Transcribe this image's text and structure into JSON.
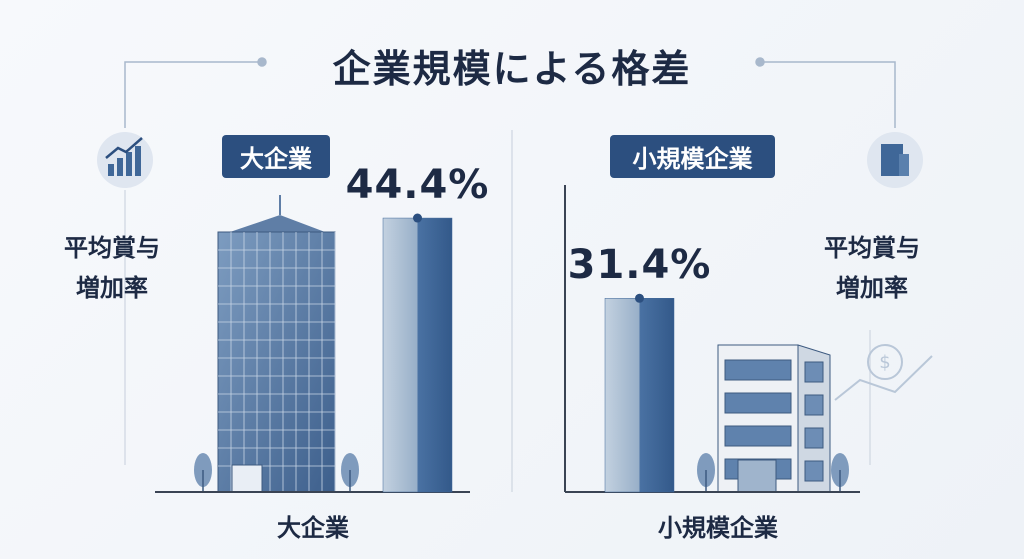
{
  "chart_data": {
    "type": "bar",
    "title": "企業規模による格差",
    "ylabel": "平均賞与増加率",
    "categories": [
      "大企業",
      "小規模企業"
    ],
    "values": [
      44.4,
      31.4
    ],
    "value_labels": [
      "44.4%",
      "31.4%"
    ],
    "colors": [
      "#3f6798",
      "#3f6798"
    ]
  }
}
